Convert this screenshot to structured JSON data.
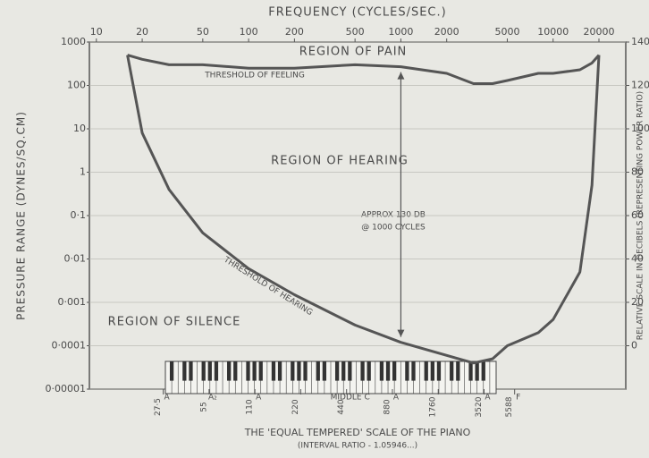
{
  "chart_data": {
    "type": "line",
    "title": "FREQUENCY (CYCLES/SEC.)",
    "y_label": "PRESSURE RANGE (DYNES/SQ.CM)",
    "y2_label": "RELATIVE SCALE IN DECIBELS (REPRESENTING POWER RATIO)",
    "x_label": "THE 'EQUAL TEMPERED' SCALE OF THE PIANO",
    "x_sublabel": "(INTERVAL RATIO - 1.05946...)",
    "annotations": [
      "REGION OF PAIN",
      "REGION OF HEARING",
      "REGION OF SILENCE",
      "APPROX 130 DB",
      "@ 1000 CYCLES"
    ],
    "x_log": true,
    "y_log": true,
    "grid": true,
    "xlim": [
      9,
      30000
    ],
    "xticks": [
      10,
      20,
      50,
      100,
      200,
      500,
      1000,
      2000,
      5000,
      10000,
      20000
    ],
    "ylim": [
      1e-05,
      1000
    ],
    "yticks": [
      1000,
      100,
      10,
      1,
      {
        "value": 0.1,
        "label": "0·1"
      },
      {
        "value": 0.01,
        "label": "0·01"
      },
      {
        "value": 0.001,
        "label": "0·001"
      },
      {
        "value": 0.0001,
        "label": "0·0001"
      },
      {
        "value": 1e-05,
        "label": "0·00001"
      }
    ],
    "y2lim": [
      -20,
      140
    ],
    "y2ticks": [
      140,
      120,
      100,
      80,
      60,
      40,
      20,
      0
    ],
    "x": [
      16,
      20,
      30,
      50,
      100,
      200,
      500,
      1000,
      2000,
      3000,
      4000,
      5000,
      8000,
      10000,
      15000,
      18000,
      20000
    ],
    "series": [
      {
        "name": "THRESHOLD OF FEELING",
        "color": "#555555",
        "values": [
          500,
          400,
          300,
          300,
          250,
          250,
          300,
          270,
          190,
          110,
          110,
          130,
          190,
          190,
          230,
          330,
          500
        ]
      },
      {
        "name": "THRESHOLD OF HEARING",
        "color": "#555555",
        "values": [
          500,
          8,
          0.4,
          0.04,
          0.006,
          0.0015,
          0.0003,
          0.00012,
          6e-05,
          4e-05,
          5e-05,
          0.0001,
          0.0002,
          0.0004,
          0.005,
          0.5,
          500
        ]
      }
    ],
    "piano_notes": [
      {
        "value": 27.5,
        "label": "27·5",
        "note": "A"
      },
      {
        "value": 55,
        "label": "55",
        "note": "A₂"
      },
      {
        "value": 110,
        "label": "110",
        "note": "A"
      },
      {
        "value": 220,
        "label": "220"
      },
      {
        "value": 440,
        "label": "440",
        "note": "MIDDLE C"
      },
      {
        "value": 880,
        "label": "880",
        "note": "A"
      },
      {
        "value": 1760,
        "label": "1760"
      },
      {
        "value": 3520,
        "label": "3520",
        "note": "A"
      },
      {
        "value": 5588,
        "label": "5588",
        "note": "F"
      }
    ]
  }
}
